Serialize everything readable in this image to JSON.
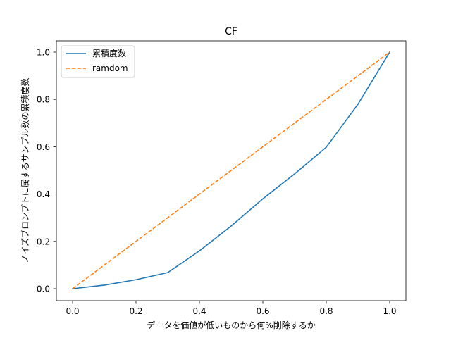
{
  "chart_data": {
    "type": "line",
    "title": "CF",
    "xlabel": "データを価値が低いものから何%削除するか",
    "ylabel": "ノイズプロンプトに属するサンプル数の累積度数",
    "xlim": [
      0.0,
      1.0
    ],
    "ylim": [
      0.0,
      1.0
    ],
    "xticks": [
      "0.0",
      "0.2",
      "0.4",
      "0.6",
      "0.8",
      "1.0"
    ],
    "yticks": [
      "0.0",
      "0.2",
      "0.4",
      "0.6",
      "0.8",
      "1.0"
    ],
    "grid": false,
    "legend_position": "top-left",
    "series": [
      {
        "name": "累積度数",
        "color": "#1f77b4",
        "style": "solid",
        "x": [
          0.0,
          0.1,
          0.2,
          0.3,
          0.4,
          0.5,
          0.6,
          0.7,
          0.8,
          0.9,
          1.0
        ],
        "y": [
          0.0,
          0.015,
          0.038,
          0.068,
          0.16,
          0.265,
          0.38,
          0.485,
          0.598,
          0.78,
          1.0
        ]
      },
      {
        "name": "ramdom",
        "color": "#ff7f0e",
        "style": "dashed",
        "x": [
          0.0,
          1.0
        ],
        "y": [
          0.0,
          1.0
        ]
      }
    ]
  }
}
